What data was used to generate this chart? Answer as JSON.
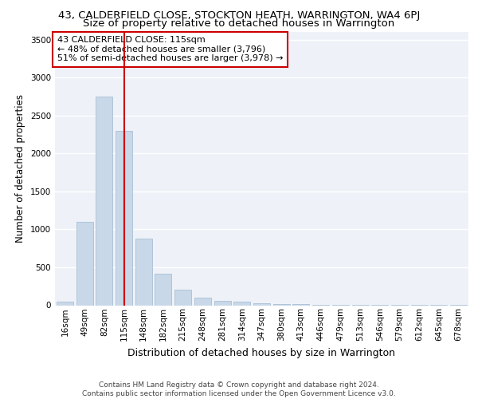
{
  "title": "43, CALDERFIELD CLOSE, STOCKTON HEATH, WARRINGTON, WA4 6PJ",
  "subtitle": "Size of property relative to detached houses in Warrington",
  "xlabel": "Distribution of detached houses by size in Warrington",
  "ylabel": "Number of detached properties",
  "bar_labels": [
    "16sqm",
    "49sqm",
    "82sqm",
    "115sqm",
    "148sqm",
    "182sqm",
    "215sqm",
    "248sqm",
    "281sqm",
    "314sqm",
    "347sqm",
    "380sqm",
    "413sqm",
    "446sqm",
    "479sqm",
    "513sqm",
    "546sqm",
    "579sqm",
    "612sqm",
    "645sqm",
    "678sqm"
  ],
  "bar_values": [
    50,
    1100,
    2750,
    2300,
    880,
    410,
    200,
    100,
    60,
    50,
    30,
    20,
    15,
    10,
    5,
    3,
    2,
    2,
    1,
    1,
    1
  ],
  "bar_color": "#c8d8e8",
  "bar_edge_color": "#a0b8d0",
  "bar_linewidth": 0.5,
  "marker_index": 3,
  "marker_color": "#cc0000",
  "ylim": [
    0,
    3600
  ],
  "yticks": [
    0,
    500,
    1000,
    1500,
    2000,
    2500,
    3000,
    3500
  ],
  "bg_color": "#eef2f8",
  "grid_color": "#ffffff",
  "annotation_text": "43 CALDERFIELD CLOSE: 115sqm\n← 48% of detached houses are smaller (3,796)\n51% of semi-detached houses are larger (3,978) →",
  "annotation_box_color": "#ffffff",
  "annotation_box_edge": "#cc0000",
  "footer_text": "Contains HM Land Registry data © Crown copyright and database right 2024.\nContains public sector information licensed under the Open Government Licence v3.0.",
  "title_fontsize": 9.5,
  "subtitle_fontsize": 9.5,
  "xlabel_fontsize": 9,
  "ylabel_fontsize": 8.5,
  "tick_fontsize": 7.5,
  "annotation_fontsize": 8,
  "footer_fontsize": 6.5
}
